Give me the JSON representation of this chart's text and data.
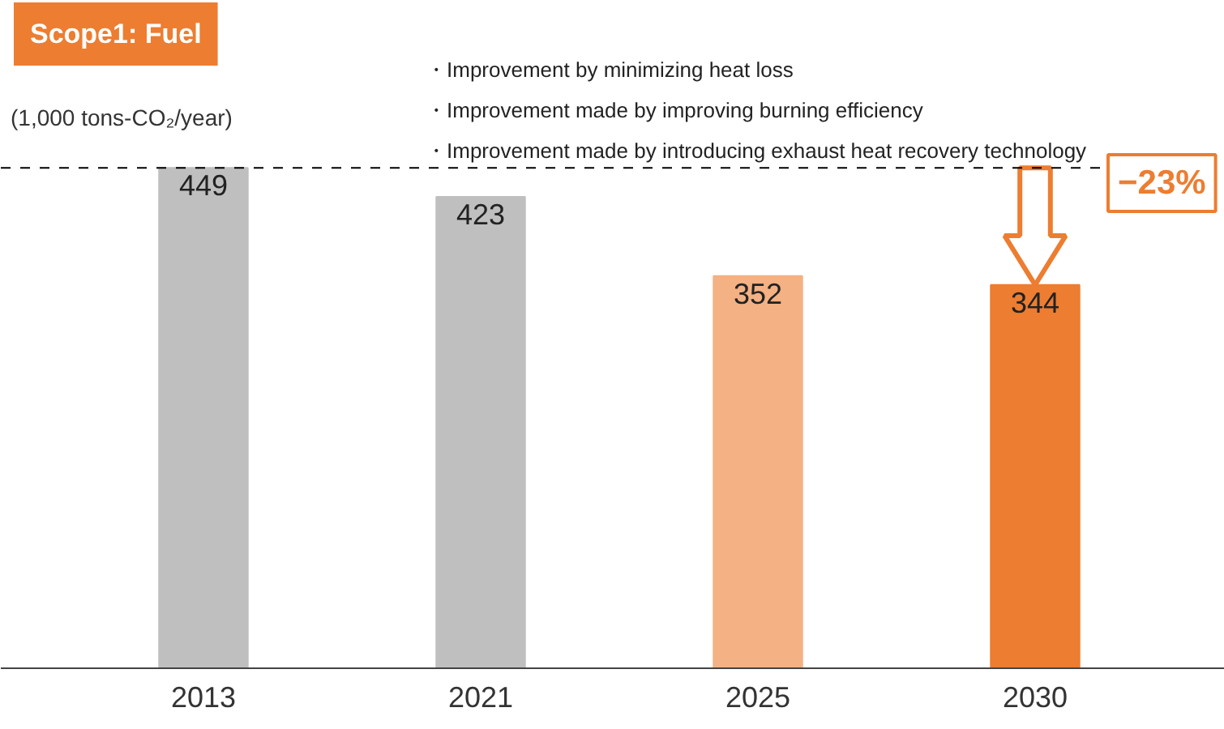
{
  "chart_data": {
    "type": "bar",
    "title": "Scope1: Fuel",
    "ylabel": "(1,000 tons-CO₂/year)",
    "categories": [
      "2013",
      "2021",
      "2025",
      "2030"
    ],
    "values": [
      449,
      423,
      352,
      344
    ],
    "colors": [
      "#bfbfbf",
      "#bfbfbf",
      "#f4b183",
      "#ed7d31"
    ],
    "data_labels": true,
    "grid": false,
    "ref_lines": [
      {
        "axis": "y",
        "value": 449,
        "line_style": "dashed",
        "color": "#000000"
      }
    ],
    "annotations": [
      "・Improvement by minimizing heat loss",
      "・Improvement made by improving burning efficiency",
      "・Improvement made by introducing exhaust heat recovery technology",
      "−23%"
    ]
  }
}
